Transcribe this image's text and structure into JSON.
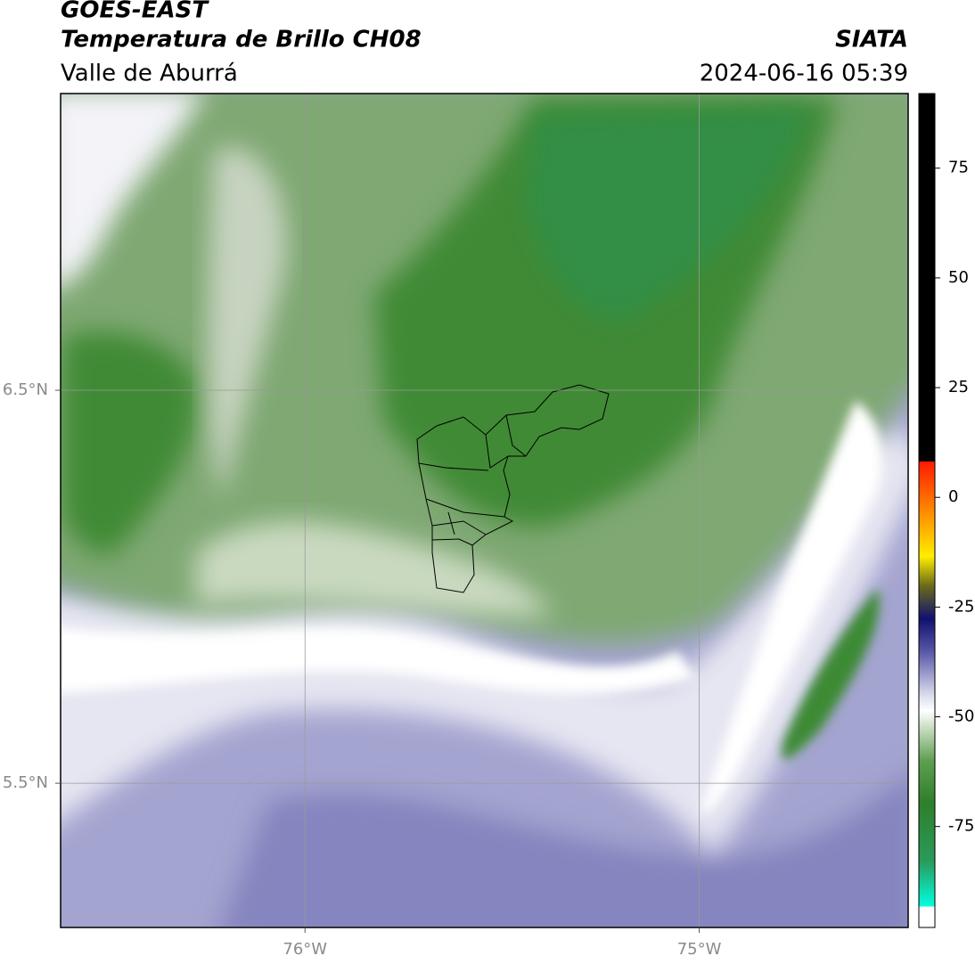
{
  "header": {
    "title": "GOES-EAST",
    "subtitle": "Temperatura de Brillo CH08",
    "region": "Valle de Aburrá",
    "source": "SIATA",
    "datetime": "2024-06-16 05:39"
  },
  "chart_data": {
    "type": "map",
    "xlim": [
      -76.62,
      -74.47
    ],
    "ylim": [
      5.133,
      7.255
    ],
    "xticks": [
      {
        "value": -76,
        "label": "76°W"
      },
      {
        "value": -75,
        "label": "75°W"
      }
    ],
    "yticks": [
      {
        "value": 6.5,
        "label": "6.5°N"
      },
      {
        "value": 5.5,
        "label": "5.5°N"
      }
    ],
    "grid": true,
    "colorbar": {
      "lim": [
        -98,
        92
      ],
      "ticks": [
        75,
        50,
        25,
        0,
        -25,
        -50,
        -75
      ]
    }
  }
}
